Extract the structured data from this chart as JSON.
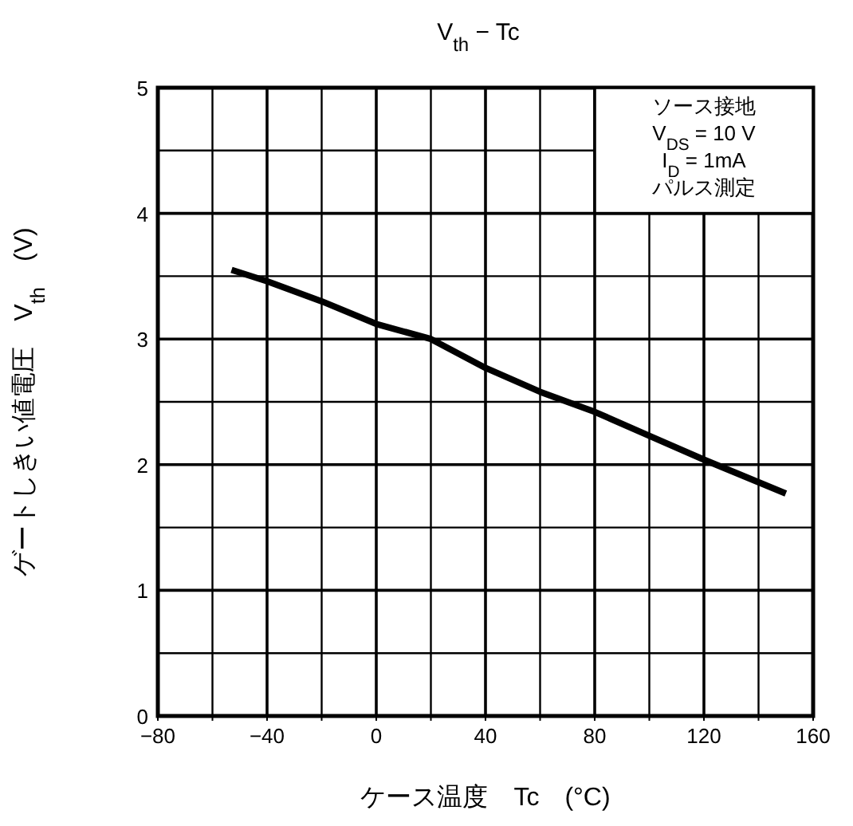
{
  "chart_data": {
    "type": "line",
    "title": "V$_{th}$ − Tc",
    "xlabel": "ケース温度　Tc　(°C)",
    "ylabel": "ゲートしきい値電圧　V$_{th}$　(V)",
    "annotations": [
      "ソース接地",
      "V$_{DS}$ = 10 V",
      "I$_{D}$ = 1mA",
      "パルス測定"
    ],
    "series": [
      {
        "color": "#000000",
        "x": [
          -53,
          -40,
          -20,
          0,
          20,
          40,
          60,
          80,
          100,
          120,
          150
        ],
        "values": [
          3.55,
          3.46,
          3.3,
          3.12,
          3.0,
          2.77,
          2.58,
          2.42,
          2.23,
          2.04,
          1.77
        ]
      }
    ],
    "xlim": [
      -80,
      160
    ],
    "ylim": [
      0,
      5
    ],
    "xticks": [
      -80,
      {
        "value": -60,
        "label": null
      },
      -40,
      {
        "value": -20,
        "label": null
      },
      0,
      {
        "value": 20,
        "label": null
      },
      40,
      {
        "value": 60,
        "label": null
      },
      80,
      {
        "value": 100,
        "label": null
      },
      120,
      {
        "value": 140,
        "label": null
      },
      160
    ],
    "yticks": [
      0,
      {
        "value": 0.5,
        "label": null
      },
      1,
      {
        "value": 1.5,
        "label": null
      },
      2,
      {
        "value": 2.5,
        "label": null
      },
      3,
      {
        "value": 3.5,
        "label": null
      },
      4,
      {
        "value": 4.5,
        "label": null
      },
      5
    ],
    "grid": true,
    "marker": "none",
    "line_style": "solid"
  }
}
